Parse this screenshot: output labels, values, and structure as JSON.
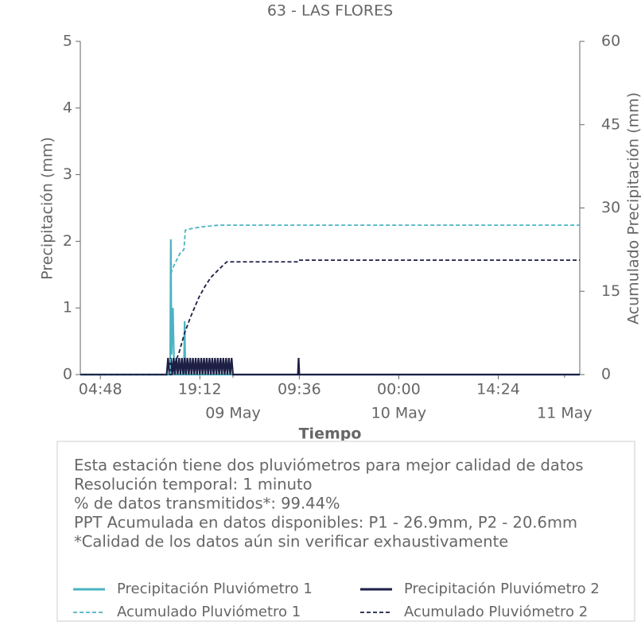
{
  "chart_data": {
    "type": "line",
    "title": "63 - LAS FLORES",
    "xlabel": "Tiempo",
    "ylabel": "Precipitación (mm)",
    "y2label": "Acumulado Precipitación (mm)",
    "xlim": [
      1.9,
      74.2
    ],
    "xticks": [
      {
        "value": 4.8,
        "label": "04:48"
      },
      {
        "value": 19.2,
        "label": "19:12"
      },
      {
        "value": 33.6,
        "label": "09:36"
      },
      {
        "value": 48,
        "label": "00:00"
      },
      {
        "value": 62.4,
        "label": "14:24"
      }
    ],
    "xticks_minor": [
      {
        "value": 24,
        "label": "09 May"
      },
      {
        "value": 48,
        "label": "10 May"
      },
      {
        "value": 72,
        "label": "11 May"
      }
    ],
    "ylim": [
      0,
      5
    ],
    "yticks": [
      0,
      1,
      2,
      3,
      4,
      5
    ],
    "y2lim": [
      0,
      60
    ],
    "y2ticks": [
      0,
      15,
      30,
      45,
      60
    ],
    "series": [
      {
        "name": "Precipitación Pluviómetro 1",
        "color": "#4bb3c2",
        "dashed": false,
        "x": [
          1.9,
          14.9,
          15.0,
          15.1,
          15.3,
          15.5,
          16.9,
          17.0,
          17.1,
          74.2
        ],
        "values": [
          0,
          0,
          2.03,
          0.3,
          1.0,
          0,
          0,
          0.8,
          0,
          0
        ]
      },
      {
        "name": "Precipitación Pluviómetro 2",
        "color": "#1d1f45",
        "dashed": false,
        "x": [
          1.9,
          14.4,
          14.6,
          14.8,
          15.0,
          15.2,
          15.4,
          15.6,
          15.8,
          16.0,
          16.2,
          16.4,
          16.6,
          16.8,
          17.0,
          17.2,
          17.4,
          17.6,
          17.8,
          18.0,
          18.2,
          18.4,
          18.6,
          18.8,
          19.0,
          19.2,
          19.4,
          19.6,
          19.8,
          20.0,
          20.2,
          20.4,
          20.6,
          20.8,
          21.0,
          21.2,
          21.4,
          21.6,
          21.8,
          22.0,
          22.2,
          22.4,
          22.6,
          22.8,
          23.0,
          23.2,
          23.4,
          23.6,
          23.8,
          24.0,
          33.4,
          33.5,
          33.6,
          74.2
        ],
        "values": [
          0,
          0,
          0.25,
          0,
          0.25,
          0,
          0.25,
          0,
          0.25,
          0,
          0.25,
          0,
          0.25,
          0,
          0.25,
          0,
          0.25,
          0,
          0.25,
          0,
          0.25,
          0,
          0.25,
          0,
          0.25,
          0,
          0.25,
          0,
          0.25,
          0,
          0.25,
          0,
          0.25,
          0,
          0.25,
          0,
          0.25,
          0,
          0.25,
          0,
          0.25,
          0,
          0.25,
          0,
          0.25,
          0,
          0.25,
          0,
          0.25,
          0,
          0,
          0.25,
          0,
          0
        ]
      },
      {
        "name": "Acumulado Pluviómetro 1",
        "color": "#4bb3c2",
        "dashed": true,
        "axis": "y2",
        "x": [
          1.9,
          14.9,
          15.0,
          15.2,
          15.6,
          16.0,
          16.4,
          16.9,
          17.1,
          18.0,
          19.5,
          21.9,
          74.2
        ],
        "values": [
          0,
          0,
          18,
          19,
          20,
          21,
          22,
          22.5,
          26,
          26.3,
          26.6,
          26.9,
          26.9
        ]
      },
      {
        "name": "Acumulado Pluviómetro 2",
        "color": "#1d1f45",
        "dashed": true,
        "axis": "y2",
        "x": [
          1.9,
          15.2,
          15.6,
          16.2,
          17.0,
          17.9,
          19.1,
          20.0,
          20.8,
          22.0,
          23.1,
          33.4,
          33.5,
          74.2
        ],
        "values": [
          0,
          0,
          2,
          4,
          7.5,
          10.5,
          14,
          16,
          17.5,
          19,
          20.3,
          20.3,
          20.6,
          20.6
        ]
      }
    ],
    "notes": [
      "Esta estación tiene dos pluviómetros para mejor calidad de datos",
      "Resolución temporal: 1 minuto",
      "% de datos transmitidos*: 99.44%",
      "PPT Acumulada en datos disponibles: P1 - 26.9mm, P2 - 20.6mm",
      "*Calidad de los datos aún sin verificar exhaustivamente"
    ]
  }
}
